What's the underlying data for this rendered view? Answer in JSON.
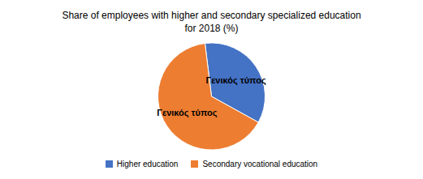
{
  "chart_data": {
    "type": "pie",
    "title": "Share of employees with higher and secondary specialized education\nfor 2018 (%)",
    "categories": [
      "Higher education",
      "Secondary vocational education"
    ],
    "values": [
      0.35,
      0.65
    ],
    "colors": [
      "#4472C4",
      "#ED7D31"
    ],
    "annotations": [
      "Γενικός τύπος",
      "Γενικός τύπος"
    ],
    "legend": "bottom"
  }
}
